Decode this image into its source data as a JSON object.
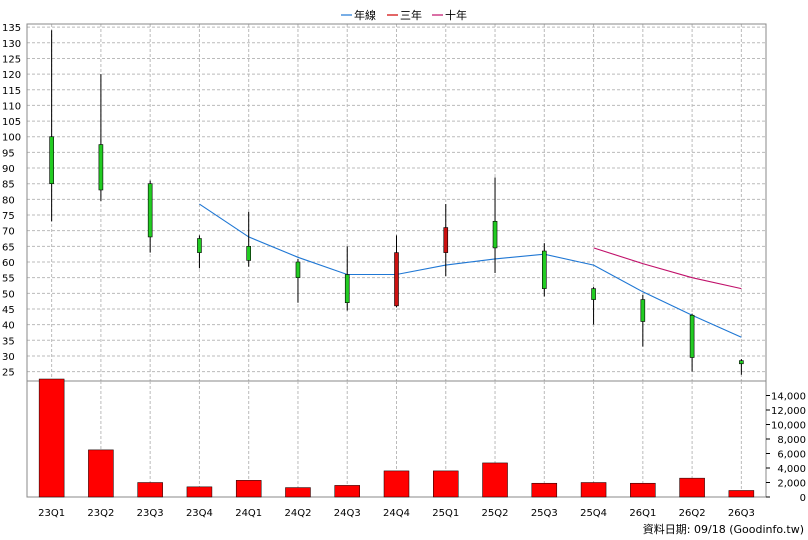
{
  "chart_data": {
    "type": "candlestick+bar",
    "categories": [
      "23Q1",
      "23Q2",
      "23Q3",
      "23Q4",
      "24Q1",
      "24Q2",
      "24Q3",
      "24Q4",
      "25Q1",
      "25Q2",
      "25Q3",
      "25Q4",
      "26Q1",
      "26Q2",
      "26Q3"
    ],
    "price_axis": {
      "ylim": [
        22,
        136
      ],
      "ticks": [
        25,
        30,
        35,
        40,
        45,
        50,
        55,
        60,
        65,
        70,
        75,
        80,
        85,
        90,
        95,
        100,
        105,
        110,
        115,
        120,
        125,
        130,
        135
      ]
    },
    "candles": [
      {
        "open": 85,
        "high": 134,
        "low": 73,
        "close": 100
      },
      {
        "open": 83,
        "high": 120,
        "low": 79.5,
        "close": 97.5
      },
      {
        "open": 68,
        "high": 86,
        "low": 63,
        "close": 85
      },
      {
        "open": 63,
        "high": 68.5,
        "low": 58,
        "close": 67.5
      },
      {
        "open": 60.5,
        "high": 76,
        "low": 58.5,
        "close": 65
      },
      {
        "open": 55,
        "high": 61,
        "low": 47,
        "close": 60
      },
      {
        "open": 47,
        "high": 65,
        "low": 44.5,
        "close": 56
      },
      {
        "open": 63,
        "high": 68.5,
        "low": 45.5,
        "close": 46
      },
      {
        "open": 71,
        "high": 78.5,
        "low": 55.5,
        "close": 63
      },
      {
        "open": 64.5,
        "high": 87,
        "low": 56.5,
        "close": 73
      },
      {
        "open": 51.5,
        "high": 66,
        "low": 49,
        "close": 63.5
      },
      {
        "open": 48,
        "high": 52,
        "low": 40,
        "close": 51.5
      },
      {
        "open": 41,
        "high": 49.5,
        "low": 33,
        "close": 48
      },
      {
        "open": 29.5,
        "high": 43.5,
        "low": 25,
        "close": 43
      },
      {
        "open": 27.5,
        "high": 29,
        "low": 24,
        "close": 28.5
      }
    ],
    "series": [
      {
        "name": "年線",
        "color": "#1f77d4",
        "values": [
          null,
          null,
          null,
          78.5,
          68,
          61.5,
          56,
          56,
          59,
          61,
          62.5,
          59,
          50.5,
          43,
          36
        ]
      },
      {
        "name": "三年",
        "color": "#d00000",
        "values": [
          null,
          null,
          null,
          null,
          null,
          null,
          null,
          null,
          null,
          null,
          null,
          null,
          null,
          null,
          null
        ]
      },
      {
        "name": "十年",
        "color": "#c0106a",
        "values": [
          null,
          null,
          null,
          null,
          null,
          null,
          null,
          null,
          null,
          null,
          null,
          64.5,
          59.5,
          55,
          51.5
        ]
      }
    ],
    "volume_axis": {
      "ylim": [
        0,
        16000
      ],
      "ticks": [
        0,
        2000,
        4000,
        6000,
        8000,
        10000,
        12000,
        14000
      ],
      "tick_labels": [
        "0",
        "2,000",
        "4,000",
        "6,000",
        "8,000",
        "10,000",
        "12,000",
        "14,000"
      ]
    },
    "volume": [
      16300,
      6500,
      2000,
      1400,
      2300,
      1300,
      1600,
      3600,
      3600,
      4700,
      1900,
      2000,
      1900,
      2600,
      900
    ],
    "colors": {
      "up": "#22cc22",
      "down": "#cc1111",
      "volume": "#ff0000",
      "grid": "#bbbbbb"
    },
    "grid": true,
    "legend_position": "top-center",
    "footer": "資料日期: 09/18  (Goodinfo.tw)"
  }
}
